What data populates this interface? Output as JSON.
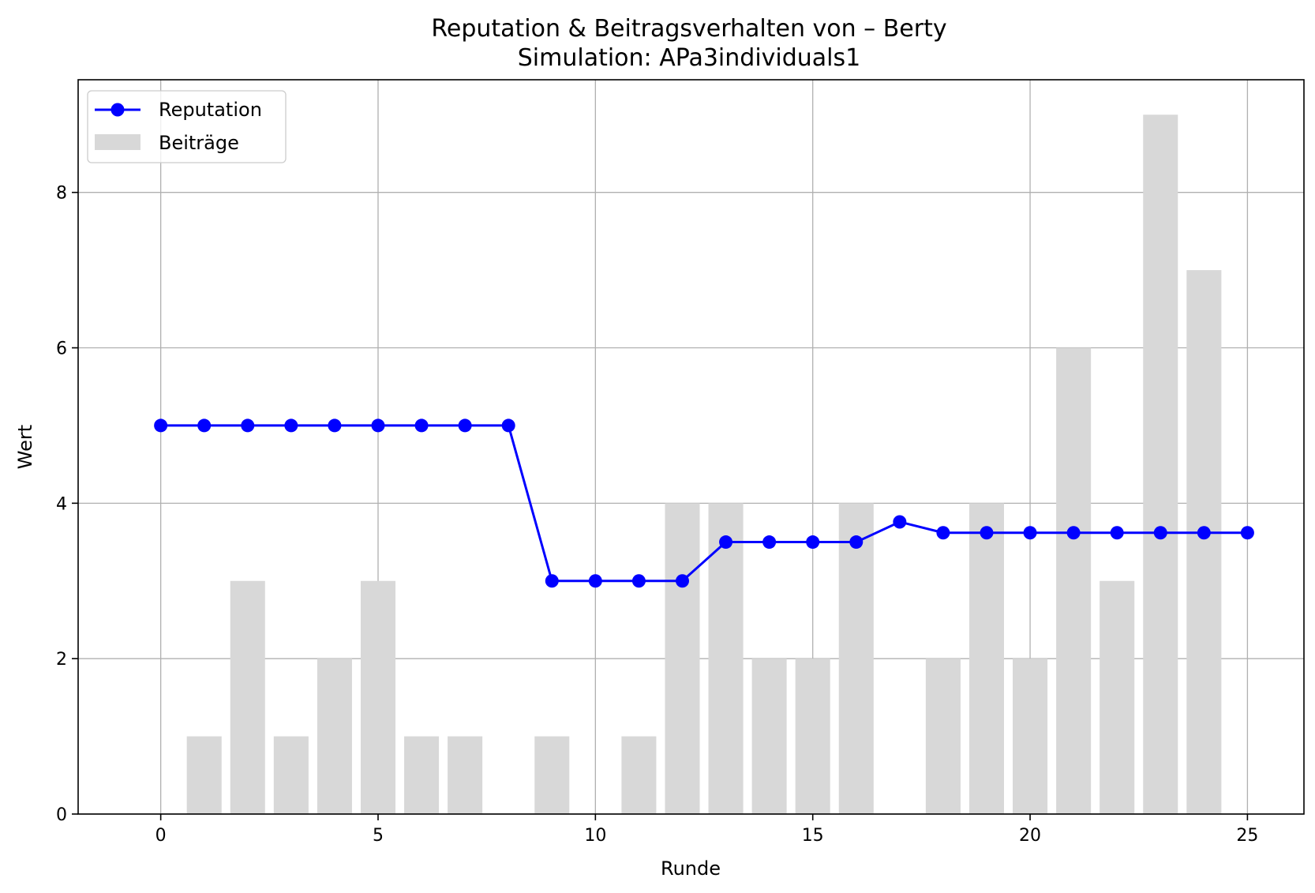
{
  "chart_data": {
    "type": "bar+line",
    "title": "Reputation & Beitragsverhalten von – Berty",
    "subtitle": "Simulation: APa3individuals1",
    "xlabel": "Runde",
    "ylabel": "Wert",
    "xlim": [
      -1.9,
      26.3
    ],
    "ylim": [
      0,
      9.45
    ],
    "x_ticks": [
      0,
      5,
      10,
      15,
      20,
      25
    ],
    "y_ticks": [
      0,
      2,
      4,
      6,
      8
    ],
    "grid": true,
    "legend_position": "upper-left",
    "series": [
      {
        "name": "Reputation",
        "type": "line",
        "marker": "circle",
        "color": "#0000ff",
        "x": [
          0,
          1,
          2,
          3,
          4,
          5,
          6,
          7,
          8,
          9,
          10,
          11,
          12,
          13,
          14,
          15,
          16,
          17,
          18,
          19,
          20,
          21,
          22,
          23,
          24,
          25
        ],
        "values": [
          5,
          5,
          5,
          5,
          5,
          5,
          5,
          5,
          5,
          3,
          3,
          3,
          3,
          3.5,
          3.5,
          3.5,
          3.5,
          3.76,
          3.62,
          3.62,
          3.62,
          3.62,
          3.62,
          3.62,
          3.62,
          3.62
        ]
      },
      {
        "name": "Beiträge",
        "type": "bar",
        "color": "#d8d8d8",
        "x": [
          0,
          1,
          2,
          3,
          4,
          5,
          6,
          7,
          8,
          9,
          10,
          11,
          12,
          13,
          14,
          15,
          16,
          17,
          18,
          19,
          20,
          21,
          22,
          23,
          24,
          25
        ],
        "values": [
          0,
          1,
          3,
          1,
          2,
          3,
          1,
          1,
          0,
          1,
          0,
          1,
          4,
          4,
          2,
          2,
          4,
          0,
          2,
          4,
          2,
          6,
          3,
          9,
          7,
          0
        ]
      }
    ]
  }
}
